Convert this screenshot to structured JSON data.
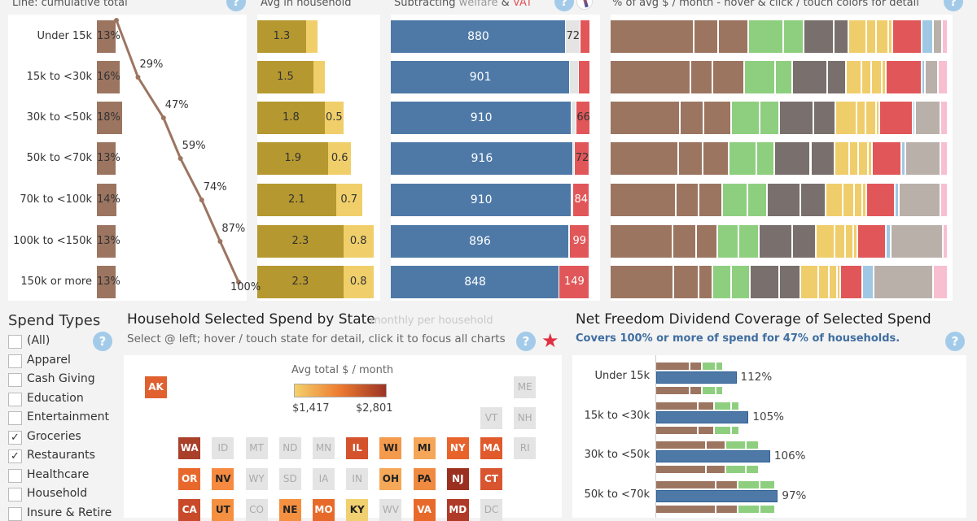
{
  "titles": {
    "cumulative": "Line: cumulative total",
    "household": "Avg in household",
    "subtracting_prefix": "Subtracting ",
    "subtracting_welfare": "welfare",
    "subtracting_amp": " & ",
    "subtracting_vat": "VAT",
    "percent": "% of avg $ / month - hover & click / touch colors for detail"
  },
  "help_label": "?",
  "income_brackets": [
    "Under 15k",
    "15k to <30k",
    "30k to <50k",
    "50k to <70k",
    "70k to <100k",
    "100k to <150k",
    "150k or more"
  ],
  "chart_data": [
    {
      "type": "bar",
      "title": "Line: cumulative total",
      "categories": [
        "Under 15k",
        "15k to <30k",
        "30k to <50k",
        "50k to <70k",
        "70k to <100k",
        "100k to <150k",
        "150k or more"
      ],
      "series": [
        {
          "values": [
            13,
            16,
            18,
            13,
            14,
            13,
            13
          ],
          "labels": [
            "13%",
            "16%",
            "18%",
            "13%",
            "14%",
            "13%",
            "13%"
          ]
        },
        {
          "type": "line",
          "values": [
            13,
            29,
            47,
            59,
            74,
            87,
            100
          ],
          "labels": [
            "",
            "29%",
            "47%",
            "59%",
            "74%",
            "87%",
            "100%"
          ]
        }
      ],
      "colors": {
        "bar": "#9c7561",
        "line": "#9c7561"
      }
    },
    {
      "type": "bar",
      "title": "Avg in household",
      "stacked": true,
      "series": [
        {
          "values": [
            1.3,
            1.5,
            1.8,
            1.9,
            2.1,
            2.3,
            2.3
          ],
          "labels": [
            "1.3",
            "1.5",
            "1.8",
            "1.9",
            "2.1",
            "2.3",
            "2.3"
          ]
        },
        {
          "values": [
            0.3,
            0.3,
            0.5,
            0.6,
            0.7,
            0.8,
            0.8
          ],
          "labels": [
            "",
            "",
            "0.5",
            "0.6",
            "0.7",
            "0.8",
            "0.8"
          ]
        }
      ],
      "colors": [
        "#b5982f",
        "#f0cf6b"
      ]
    },
    {
      "type": "bar",
      "title": "Subtracting welfare & VAT",
      "stacked": true,
      "series": [
        {
          "values": [
            880,
            901,
            910,
            916,
            910,
            896,
            848
          ],
          "labels": [
            "880",
            "901",
            "910",
            "916",
            "910",
            "896",
            "848"
          ]
        },
        {
          "values": [
            72,
            45,
            25,
            10,
            5,
            3,
            0
          ],
          "labels": [
            "72",
            "",
            "",
            "",
            "",
            "",
            ""
          ]
        },
        {
          "values": [
            49,
            55,
            66,
            72,
            84,
            99,
            149
          ],
          "labels": [
            "",
            "",
            "66",
            "72",
            "84",
            "99",
            "149"
          ]
        }
      ],
      "colors": [
        "#4e79a7",
        "#e4e4e4",
        "#e15759"
      ]
    },
    {
      "type": "bar",
      "title": "% of avg $ / month",
      "stacked": true,
      "segment_colors": [
        "#9c7561",
        "#9c7561",
        "#9c7561",
        "#8ecf7f",
        "#8ecf7f",
        "#796f6c",
        "#796f6c",
        "#f0cd6b",
        "#f0cd6b",
        "#f0cd6b",
        "#f0cd6b",
        "#e15759",
        "#a0c8e4",
        "#b9b0aa",
        "#f8bfd1"
      ],
      "rows": [
        [
          99,
          29,
          36,
          41,
          24,
          36,
          17,
          22,
          11,
          15,
          4,
          35,
          14,
          10,
          7
        ],
        [
          96,
          26,
          38,
          37,
          20,
          42,
          22,
          18,
          12,
          13,
          4,
          43,
          4,
          15,
          12
        ],
        [
          82,
          28,
          33,
          33,
          23,
          40,
          26,
          25,
          10,
          13,
          4,
          39,
          3,
          29,
          9
        ],
        [
          81,
          29,
          30,
          33,
          21,
          43,
          28,
          18,
          10,
          12,
          5,
          34,
          5,
          41,
          9
        ],
        [
          78,
          27,
          28,
          30,
          23,
          40,
          29,
          21,
          13,
          10,
          5,
          33,
          5,
          49,
          9
        ],
        [
          73,
          27,
          24,
          25,
          23,
          39,
          27,
          22,
          12,
          10,
          4,
          33,
          6,
          60,
          6
        ],
        [
          75,
          29,
          17,
          22,
          22,
          34,
          25,
          21,
          12,
          10,
          4,
          26,
          13,
          70,
          17
        ]
      ]
    },
    {
      "type": "bar",
      "title": "Net Freedom Dividend Coverage of Selected Spend",
      "categories": [
        "Under 15k",
        "15k to <30k",
        "30k to <50k",
        "50k to <70k"
      ],
      "coverage": [
        112,
        105,
        106,
        97
      ],
      "labels": [
        "112%",
        "105%",
        "106%",
        "97%"
      ],
      "spend_segments": [
        [
          42,
          15,
          17,
          9
        ],
        [
          52,
          20,
          21,
          10
        ],
        [
          62,
          24,
          25,
          16
        ],
        [
          74,
          27,
          27,
          19
        ]
      ],
      "colors": {
        "coverage": "#4e79a7",
        "groceries": "#9c7561",
        "restaurants": "#8ecf7f"
      }
    }
  ],
  "spend_types": {
    "title": "Spend Types",
    "items": [
      {
        "label": "(All)",
        "checked": false
      },
      {
        "label": "Apparel",
        "checked": false
      },
      {
        "label": "Cash Giving",
        "checked": false
      },
      {
        "label": "Education",
        "checked": false
      },
      {
        "label": "Entertainment",
        "checked": false
      },
      {
        "label": "Groceries",
        "checked": true
      },
      {
        "label": "Restaurants",
        "checked": true
      },
      {
        "label": "Healthcare",
        "checked": false
      },
      {
        "label": "Household",
        "checked": false
      },
      {
        "label": "Insure & Retire",
        "checked": false
      }
    ],
    "check_glyph": "✓"
  },
  "state_map": {
    "title": "Household Selected Spend by State",
    "ghost_text": "monthly per household",
    "subtitle": "Select @ left; hover / touch state for detail, click it to focus all charts",
    "legend_title": "Avg total $ / month",
    "legend_min": "$1,417",
    "legend_max": "$2,801",
    "legend_colors": [
      "#f4d06b",
      "#ec7a30",
      "#9c3425"
    ],
    "states": [
      {
        "code": "AK",
        "color": "#e0602f"
      },
      {
        "code": "ME",
        "color": ""
      },
      {
        "code": "VT",
        "color": ""
      },
      {
        "code": "NH",
        "color": ""
      },
      {
        "code": "WA",
        "color": "#a8402a"
      },
      {
        "code": "ID",
        "color": ""
      },
      {
        "code": "MT",
        "color": ""
      },
      {
        "code": "ND",
        "color": ""
      },
      {
        "code": "MN",
        "color": ""
      },
      {
        "code": "IL",
        "color": "#d4522c"
      },
      {
        "code": "WI",
        "color": "#f49a4c"
      },
      {
        "code": "MI",
        "color": "#f5a658"
      },
      {
        "code": "NY",
        "color": "#e8622c"
      },
      {
        "code": "MA",
        "color": "#e05a2c"
      },
      {
        "code": "RI",
        "color": ""
      },
      {
        "code": "OR",
        "color": "#e8682c"
      },
      {
        "code": "NV",
        "color": "#f58a40"
      },
      {
        "code": "WY",
        "color": ""
      },
      {
        "code": "SD",
        "color": ""
      },
      {
        "code": "IA",
        "color": ""
      },
      {
        "code": "IN",
        "color": ""
      },
      {
        "code": "OH",
        "color": "#f5a858"
      },
      {
        "code": "PA",
        "color": "#f08a40"
      },
      {
        "code": "NJ",
        "color": "#9c3020"
      },
      {
        "code": "CT",
        "color": "#d85530"
      },
      {
        "code": "CA",
        "color": "#c84a2a"
      },
      {
        "code": "UT",
        "color": "#f59040"
      },
      {
        "code": "CO",
        "color": ""
      },
      {
        "code": "NE",
        "color": "#f59040"
      },
      {
        "code": "MO",
        "color": "#e86a2a"
      },
      {
        "code": "KY",
        "color": "#f0d070"
      },
      {
        "code": "WV",
        "color": ""
      },
      {
        "code": "VA",
        "color": "#e86a2a"
      },
      {
        "code": "MD",
        "color": "#b03a28"
      },
      {
        "code": "DC",
        "color": ""
      }
    ]
  },
  "coverage": {
    "title": "Net Freedom Dividend Coverage of Selected Spend",
    "subtitle": "Covers 100% or more of spend for 47% of households."
  }
}
